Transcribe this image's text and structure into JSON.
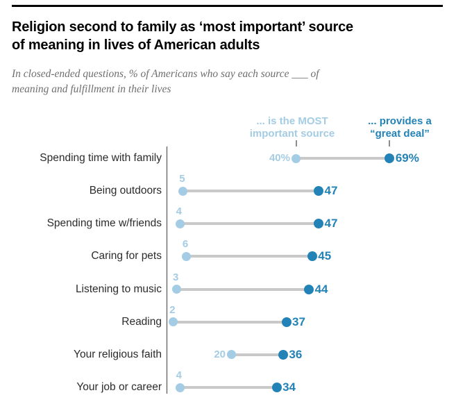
{
  "header": {
    "title_line1": "Religion second to family as ‘most important’ source",
    "title_line2": "of meaning in lives of American adults",
    "subtitle_line1": "In closed-ended questions, % of Americans who say each source ___ of",
    "subtitle_line2": "meaning and fulfillment in their lives"
  },
  "colors": {
    "light_blue": "#a4cce4",
    "dark_blue": "#2382b6",
    "connector": "#c9c9c9",
    "axis": "#3f3f3f",
    "tick": "#8c8c8c",
    "row_label": "#2b2b2b",
    "subtitle": "#6e6e6e",
    "top_rule": "#000000"
  },
  "chart_data": {
    "type": "dumbbell",
    "title": "Religion second to family as ‘most important’ source of meaning in lives of American adults",
    "subtitle": "In closed-ended questions, % of Americans who say each source ___ of meaning and fulfillment in their lives",
    "categories": [
      "Spending time with family",
      "Being outdoors",
      "Spending time w/friends",
      "Caring for pets",
      "Listening to music",
      "Reading",
      "Your religious faith",
      "Your job or career"
    ],
    "legend": [
      {
        "line1": "... is the MOST",
        "line2": "important source",
        "color": "#a4cce4"
      },
      {
        "line1": "... provides a",
        "line2": "“great deal”",
        "color": "#2382b6"
      }
    ],
    "series": [
      {
        "name": "is the MOST important source",
        "color": "#a4cce4",
        "values": [
          40,
          5,
          4,
          6,
          3,
          2,
          20,
          4
        ],
        "display": [
          "40%",
          "5",
          "4",
          "6",
          "3",
          "2",
          "20",
          "4"
        ]
      },
      {
        "name": "provides a “great deal”",
        "color": "#2382b6",
        "values": [
          69,
          47,
          47,
          45,
          44,
          37,
          36,
          34
        ],
        "display": [
          "69%",
          "47",
          "47",
          "45",
          "44",
          "37",
          "36",
          "34"
        ]
      }
    ],
    "xlim": [
      0,
      85
    ],
    "x_axis_visible": false,
    "grid": false,
    "legend_position": "top"
  }
}
